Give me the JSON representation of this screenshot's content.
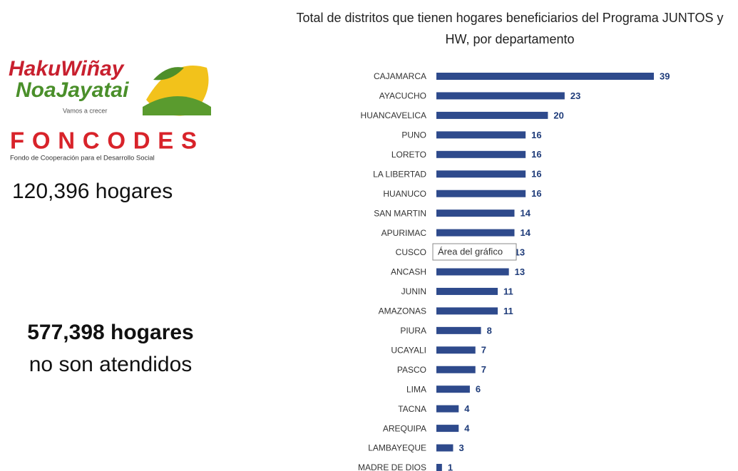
{
  "logo": {
    "line1": "HakuWiñay",
    "line2": "NoaJayatai",
    "slogan": "Vamos a crecer"
  },
  "foncodes": {
    "name": "FONCODES",
    "subtitle": "Fondo de Cooperación para el Desarrollo Social"
  },
  "summary": {
    "served": "120,396 hogares",
    "unserved": "577,398 hogares",
    "unserved_note": "no son atendidos"
  },
  "tooltip": "Área del gráfico",
  "chart_data": {
    "type": "barh",
    "title": "Total de distritos que tienen hogares beneficiarios del Programa JUNTOS y HW, por departamento",
    "categories": [
      "CAJAMARCA",
      "AYACUCHO",
      "HUANCAVELICA",
      "PUNO",
      "LORETO",
      "LA LIBERTAD",
      "HUANUCO",
      "SAN MARTIN",
      "APURIMAC",
      "CUSCO",
      "ANCASH",
      "JUNIN",
      "AMAZONAS",
      "PIURA",
      "UCAYALI",
      "PASCO",
      "LIMA",
      "TACNA",
      "AREQUIPA",
      "LAMBAYEQUE",
      "MADRE DE DIOS"
    ],
    "values": [
      39,
      23,
      20,
      16,
      16,
      16,
      16,
      14,
      14,
      13,
      13,
      11,
      11,
      8,
      7,
      7,
      6,
      4,
      4,
      3,
      1
    ],
    "color": "#2e4a8c"
  }
}
